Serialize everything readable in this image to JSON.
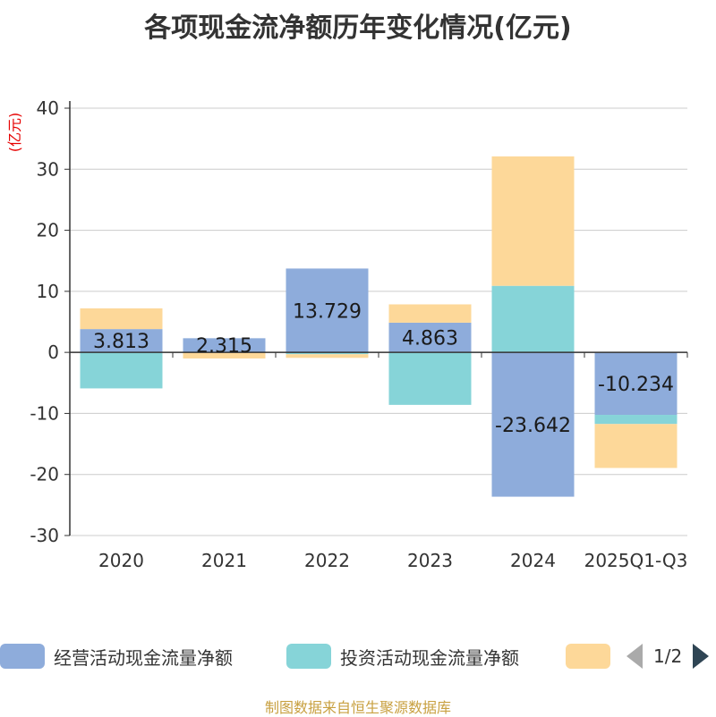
{
  "chart_data": {
    "type": "bar",
    "stacked": true,
    "title": "各项现金流净额历年变化情况(亿元)",
    "ylabel": "(亿元)",
    "ylim": [
      -30,
      40
    ],
    "yticks": [
      40,
      30,
      20,
      10,
      0,
      -10,
      -20,
      -30
    ],
    "categories": [
      "2020",
      "2021",
      "2022",
      "2023",
      "2024",
      "2025Q1-Q3"
    ],
    "series": [
      {
        "name": "经营活动现金流量净额",
        "color": "#8eacdb",
        "values": [
          3.813,
          2.315,
          13.729,
          4.863,
          -23.642,
          -10.234
        ]
      },
      {
        "name": "投资活动现金流量净额",
        "color": "#86d4d8",
        "values": [
          -5.9,
          0.0,
          -0.3,
          -8.6,
          10.9,
          -1.5
        ]
      },
      {
        "name": "",
        "color": "#fdd899",
        "values": [
          3.4,
          -1.0,
          -0.6,
          3.0,
          21.2,
          -7.2
        ]
      }
    ],
    "data_labels": [
      "3.813",
      "2.315",
      "13.729",
      "4.863",
      "-23.642",
      "-10.234"
    ]
  },
  "legend": {
    "items": [
      "经营活动现金流量净额",
      "投资活动现金流量净额",
      ""
    ],
    "page_indicator": "1/2"
  },
  "source": "制图数据来自恒生聚源数据库"
}
